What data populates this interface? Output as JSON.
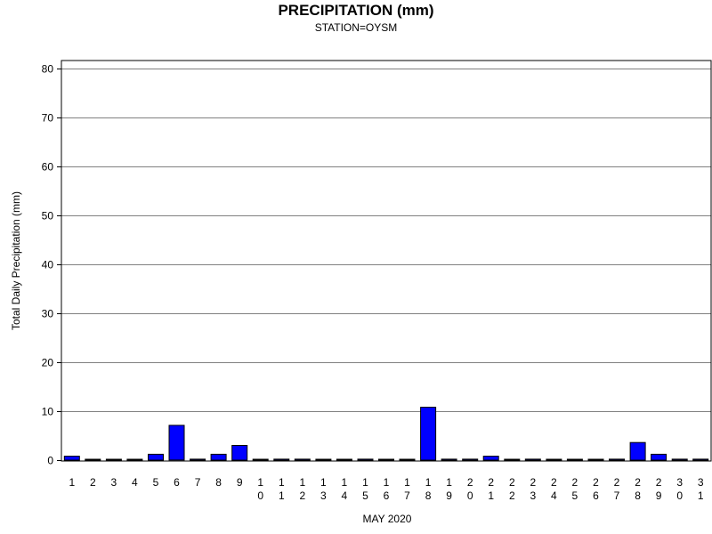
{
  "chart_data": {
    "type": "bar",
    "title": "PRECIPITATION (mm)",
    "subtitle": "STATION=OYSM",
    "xlabel": "MAY 2020",
    "ylabel": "Total Daily Precipitation (mm)",
    "ylim": [
      0,
      80
    ],
    "yticks": [
      "0",
      "10",
      "20",
      "30",
      "40",
      "50",
      "60",
      "70",
      "80"
    ],
    "grid": true,
    "bar_color": "#0000ff",
    "categories": [
      [
        "1"
      ],
      [
        "2"
      ],
      [
        "3"
      ],
      [
        "4"
      ],
      [
        "5"
      ],
      [
        "6"
      ],
      [
        "7"
      ],
      [
        "8"
      ],
      [
        "9"
      ],
      [
        "1",
        "0"
      ],
      [
        "1",
        "1"
      ],
      [
        "1",
        "2"
      ],
      [
        "1",
        "3"
      ],
      [
        "1",
        "4"
      ],
      [
        "1",
        "5"
      ],
      [
        "1",
        "6"
      ],
      [
        "1",
        "7"
      ],
      [
        "1",
        "8"
      ],
      [
        "1",
        "9"
      ],
      [
        "2",
        "0"
      ],
      [
        "2",
        "1"
      ],
      [
        "2",
        "2"
      ],
      [
        "2",
        "3"
      ],
      [
        "2",
        "4"
      ],
      [
        "2",
        "5"
      ],
      [
        "2",
        "6"
      ],
      [
        "2",
        "7"
      ],
      [
        "2",
        "8"
      ],
      [
        "2",
        "9"
      ],
      [
        "3",
        "0"
      ],
      [
        "3",
        "1"
      ]
    ],
    "values": [
      0.8,
      0,
      0,
      0,
      1.2,
      7.1,
      0.2,
      1.2,
      3.0,
      0,
      0.2,
      0.2,
      0,
      0,
      0.2,
      0,
      0,
      10.8,
      0.2,
      0.2,
      0.8,
      0,
      0.2,
      0,
      0,
      0,
      0.2,
      3.6,
      1.2,
      0.2,
      0.2
    ]
  }
}
